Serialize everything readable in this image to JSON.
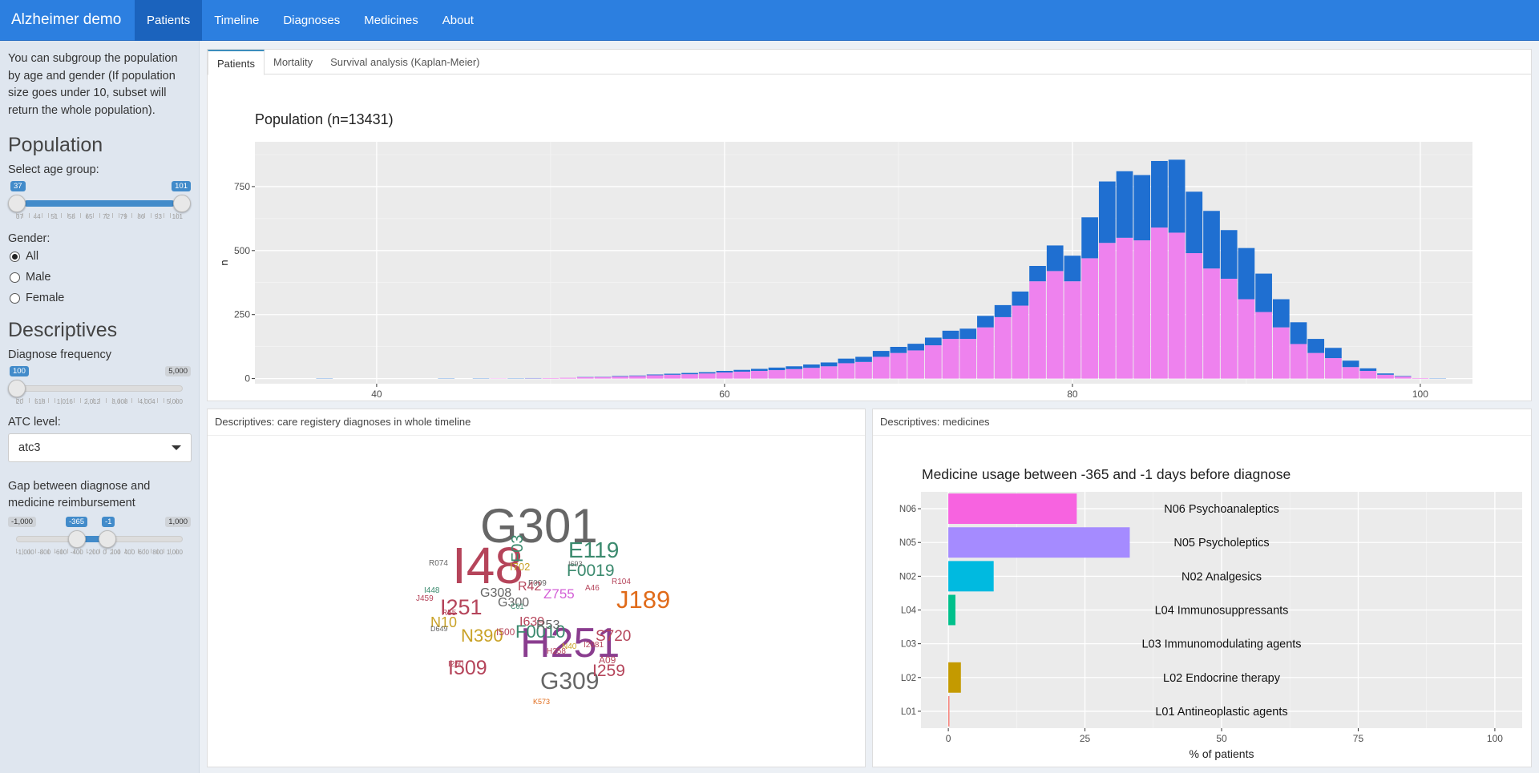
{
  "navbar": {
    "brand": "Alzheimer demo",
    "links": [
      "Patients",
      "Timeline",
      "Diagnoses",
      "Medicines",
      "About"
    ]
  },
  "sidebar": {
    "intro": "You can subgroup the population by age and gender (If population size goes under 10, subset will return the whole population).",
    "population_title": "Population",
    "age_label": "Select age group:",
    "age_min": "37",
    "age_max": "101",
    "age_ticks": [
      "37",
      "44",
      "51",
      "58",
      "65",
      "72",
      "79",
      "86",
      "93",
      "101"
    ],
    "gender_label": "Gender:",
    "gender_options": [
      "All",
      "Male",
      "Female"
    ],
    "descriptives_title": "Descriptives",
    "freq_label": "Diagnose frequency",
    "freq_value": "100",
    "freq_max": "5,000",
    "freq_ticks": [
      "20",
      "518",
      "1,016",
      "2,012",
      "3,008",
      "4,004",
      "5,000"
    ],
    "atc_label": "ATC level:",
    "atc_value": "atc3",
    "gap_label": "Gap between diagnose and medicine reimbursement",
    "gap_min": "-1,000",
    "gap_from": "-365",
    "gap_to": "-1",
    "gap_max": "1,000",
    "gap_ticks": [
      "-1,000",
      "-800",
      "-600",
      "-400",
      "-200",
      "0",
      "200",
      "400",
      "600",
      "800",
      "1,000"
    ]
  },
  "main_tabs": [
    "Patients",
    "Mortality",
    "Survival analysis (Kaplan-Meier)"
  ],
  "diag_box_title": "Descriptives: care registery diagnoses in whole timeline",
  "med_box_title": "Descriptives: medicines",
  "wordcloud": [
    "G301",
    "I48",
    "E119",
    "H251",
    "G309",
    "J189",
    "I251",
    "I509",
    "N390",
    "F0010",
    "F03",
    "F0019",
    "S720",
    "I259",
    "N10",
    "R42",
    "Z755",
    "I639",
    "R53",
    "G300",
    "A09",
    "G308",
    "I500",
    "I702",
    "J459",
    "R104",
    "I2081",
    "H258",
    "N40",
    "A46",
    "F009",
    "R074",
    "D649",
    "I693",
    "I448",
    "I250",
    "R55",
    "C61",
    "K573"
  ],
  "chart_data": [
    {
      "type": "bar",
      "title": "Population (n=13431)",
      "xlabel": "",
      "ylabel": "n",
      "stacked": true,
      "x": [
        37,
        44,
        46,
        47,
        48,
        49,
        50,
        51,
        52,
        53,
        54,
        55,
        56,
        57,
        58,
        59,
        60,
        61,
        62,
        63,
        64,
        65,
        66,
        67,
        68,
        69,
        70,
        71,
        72,
        73,
        74,
        75,
        76,
        77,
        78,
        79,
        80,
        81,
        82,
        83,
        84,
        85,
        86,
        87,
        88,
        89,
        90,
        91,
        92,
        93,
        94,
        95,
        96,
        97,
        98,
        99,
        100,
        101
      ],
      "series": [
        {
          "values": [
            1,
            1,
            1,
            0,
            1,
            1,
            0,
            0,
            1,
            1,
            2,
            2,
            3,
            4,
            5,
            5,
            6,
            7,
            8,
            10,
            11,
            13,
            15,
            18,
            20,
            23,
            24,
            26,
            30,
            32,
            40,
            45,
            47,
            55,
            60,
            100,
            100,
            160,
            240,
            260,
            255,
            260,
            285,
            240,
            225,
            190,
            200,
            150,
            110,
            85,
            55,
            40,
            25,
            10,
            5,
            2,
            0,
            1
          ]
        },
        {
          "values": [
            0,
            0,
            0,
            1,
            0,
            1,
            2,
            3,
            5,
            6,
            8,
            10,
            13,
            15,
            17,
            20,
            24,
            27,
            30,
            33,
            37,
            42,
            48,
            60,
            65,
            85,
            100,
            110,
            130,
            155,
            155,
            200,
            240,
            285,
            380,
            420,
            380,
            470,
            530,
            550,
            540,
            590,
            570,
            490,
            430,
            390,
            310,
            260,
            200,
            135,
            100,
            80,
            45,
            30,
            15,
            8,
            2,
            0
          ]
        }
      ],
      "xlim": [
        33,
        103
      ],
      "ylim": [
        -20,
        925
      ],
      "yticks": [
        0,
        250,
        500,
        750
      ],
      "xticks": [
        40,
        60,
        80,
        100
      ]
    },
    {
      "type": "bar",
      "orientation": "horizontal",
      "title": "Medicine usage between -365 and -1 days before diagnose",
      "xlabel": "% of patients",
      "ylabel": "",
      "categories": [
        "N06",
        "N05",
        "N02",
        "L04",
        "L03",
        "L02",
        "L01"
      ],
      "labels": [
        "N06 Psychoanaleptics",
        "N05 Psycholeptics",
        "N02 Analgesics",
        "L04 Immunosuppressants",
        "L03 Immunomodulating agents",
        "L02 Endocrine therapy",
        "L01 Antineoplastic agents"
      ],
      "values": [
        23.5,
        33.2,
        8.3,
        1.3,
        0,
        2.3,
        0.2
      ],
      "colors": [
        "#f763e0",
        "#a58bff",
        "#00bae0",
        "#00c08b",
        "#7cae00",
        "#c49a00",
        "#f8766d"
      ],
      "xlim": [
        -5,
        105
      ],
      "xticks": [
        0,
        25,
        50,
        75,
        100
      ]
    }
  ]
}
